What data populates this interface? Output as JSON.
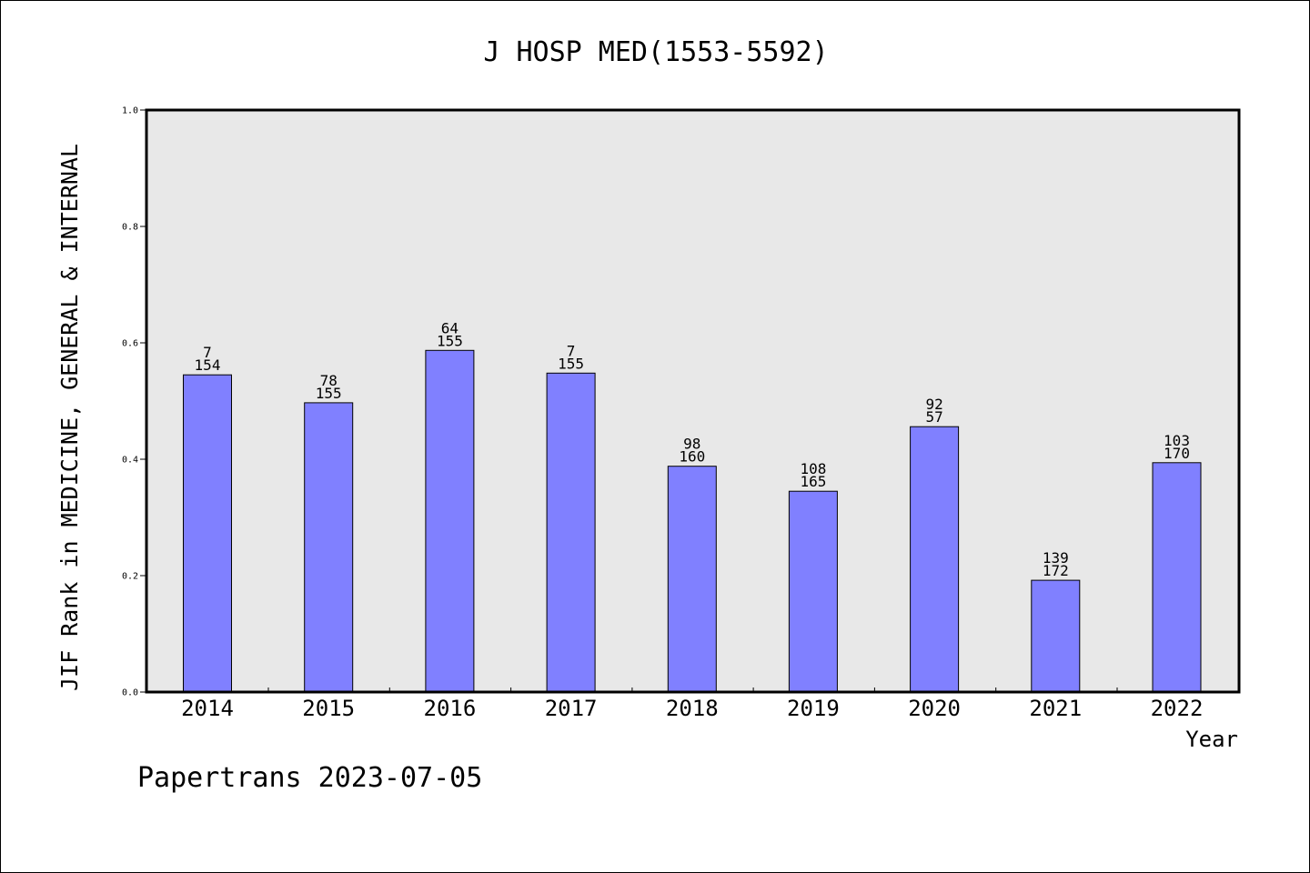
{
  "chart_data": {
    "type": "bar",
    "title": "J HOSP MED(1553-5592)",
    "xlabel": "Year",
    "ylabel": "JIF Rank in MEDICINE, GENERAL & INTERNAL",
    "ylim": [
      0.0,
      1.0
    ],
    "yticks": [
      "0.0",
      "0.2",
      "0.4",
      "0.6",
      "0.8",
      "1.0"
    ],
    "categories": [
      "2014",
      "2015",
      "2016",
      "2017",
      "2018",
      "2019",
      "2020",
      "2021",
      "2022"
    ],
    "values": [
      0.545,
      0.497,
      0.587,
      0.548,
      0.388,
      0.345,
      0.456,
      0.192,
      0.394
    ],
    "labels_top": [
      "7",
      "78",
      "64",
      "7",
      "98",
      "108",
      "92",
      "139",
      "103"
    ],
    "labels_bottom": [
      "154",
      "155",
      "155",
      "155",
      "160",
      "165",
      "57",
      "172",
      "170"
    ],
    "bar_color": "#8080ff",
    "plot_background": "#e8e8e8",
    "grid": false,
    "legend": "none"
  },
  "footer": "Papertrans 2023-07-05"
}
